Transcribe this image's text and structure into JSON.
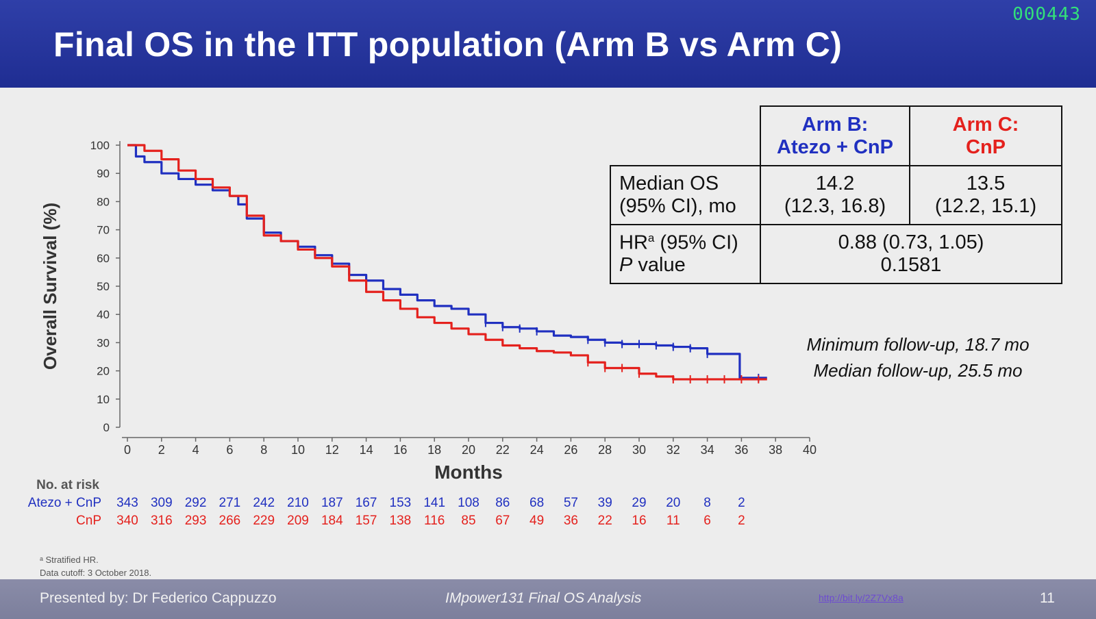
{
  "header": {
    "title": "Final OS in the ITT population (Arm B vs Arm C)",
    "counter": "000443"
  },
  "colors": {
    "arm_b": "#2030c0",
    "arm_c": "#e4211d",
    "title_bar": "#2435a0"
  },
  "table": {
    "arm_b_line1": "Arm B:",
    "arm_b_line2": "Atezo + CnP",
    "arm_c_line1": "Arm C:",
    "arm_c_line2": "CnP",
    "median_label_1": "Median OS",
    "median_label_2": "(95% CI), mo",
    "arm_b_median": "14.2",
    "arm_b_ci": "(12.3, 16.8)",
    "arm_c_median": "13.5",
    "arm_c_ci": "(12.2, 15.1)",
    "hr_label": "HR",
    "hr_sup": "a",
    "hr_label_rest": " (95% CI)",
    "p_label_italic": "P",
    "p_label_rest": " value",
    "hr_value": "0.88 (0.73, 1.05)",
    "p_value": "0.1581"
  },
  "followup": {
    "minimum": "Minimum follow-up, 18.7 mo",
    "median": "Median follow-up, 25.5 mo"
  },
  "chart_data": {
    "type": "line",
    "subtype": "kaplan-meier",
    "xlabel": "Months",
    "ylabel": "Overall Survival (%)",
    "xlim": [
      0,
      40
    ],
    "ylim": [
      0,
      100
    ],
    "xticks": [
      0,
      2,
      4,
      6,
      8,
      10,
      12,
      14,
      16,
      18,
      20,
      22,
      24,
      26,
      28,
      30,
      32,
      34,
      36,
      38,
      40
    ],
    "yticks": [
      0,
      10,
      20,
      30,
      40,
      50,
      60,
      70,
      80,
      90,
      100
    ],
    "series": [
      {
        "name": "Atezo + CnP",
        "color": "#2030c0",
        "x": [
          0,
          0.5,
          1,
          2,
          3,
          4,
          5,
          6,
          6.5,
          7,
          8,
          9,
          10,
          11,
          12,
          13,
          14,
          15,
          16,
          17,
          18,
          19,
          20,
          21,
          22,
          23,
          24,
          25,
          26,
          27,
          28,
          29,
          30,
          31,
          32,
          33,
          34,
          35,
          35.9,
          35.9,
          37.5
        ],
        "y": [
          100,
          96,
          94,
          90,
          88,
          86,
          84,
          82,
          79,
          74,
          69,
          66,
          64,
          61,
          58,
          54,
          52,
          49,
          47,
          45,
          43,
          42,
          40,
          37,
          35.5,
          35,
          34,
          32.5,
          32,
          31,
          30,
          29.5,
          29.5,
          29,
          28.5,
          28,
          26,
          26,
          26,
          17.5,
          17.5
        ]
      },
      {
        "name": "CnP",
        "color": "#e4211d",
        "x": [
          0,
          1,
          2,
          3,
          4,
          5,
          6,
          7,
          8,
          9,
          10,
          11,
          12,
          13,
          14,
          15,
          16,
          17,
          18,
          19,
          20,
          21,
          22,
          23,
          24,
          25,
          26,
          27,
          28,
          29,
          30,
          31,
          32,
          33,
          34,
          35,
          36,
          37.5
        ],
        "y": [
          100,
          98,
          95,
          91,
          88,
          85,
          82,
          75,
          68,
          66,
          63,
          60,
          57,
          52,
          48,
          45,
          42,
          39,
          37,
          35,
          33,
          31,
          29,
          28,
          27,
          26.5,
          25.5,
          23,
          21,
          21,
          19,
          18,
          17,
          17,
          17,
          17,
          17,
          17
        ]
      }
    ],
    "censor_marks": {
      "Atezo + CnP": [
        21,
        22,
        23,
        24,
        27,
        28,
        29,
        30,
        31,
        32,
        33,
        34,
        37
      ],
      "CnP": [
        27,
        28,
        29,
        30,
        32,
        33,
        34,
        35,
        36,
        37
      ]
    },
    "no_at_risk": {
      "label": "No. at risk",
      "rows": [
        {
          "name": "Atezo + CnP",
          "values": [
            "343",
            "309",
            "292",
            "271",
            "242",
            "210",
            "187",
            "167",
            "153",
            "141",
            "108",
            "86",
            "68",
            "57",
            "39",
            "29",
            "20",
            "8",
            "2"
          ]
        },
        {
          "name": "CnP",
          "values": [
            "340",
            "316",
            "293",
            "266",
            "229",
            "209",
            "184",
            "157",
            "138",
            "116",
            "85",
            "67",
            "49",
            "36",
            "22",
            "16",
            "11",
            "6",
            "2"
          ]
        }
      ]
    }
  },
  "footnotes": {
    "line1": "ᵃ Stratified HR.",
    "line2": "Data cutoff: 3 October 2018."
  },
  "footer": {
    "presenter": "Presented by: Dr Federico Cappuzzo",
    "study": "IMpower131 Final OS Analysis",
    "link": "http://bit.ly/2Z7Vx8a",
    "page": "11"
  }
}
